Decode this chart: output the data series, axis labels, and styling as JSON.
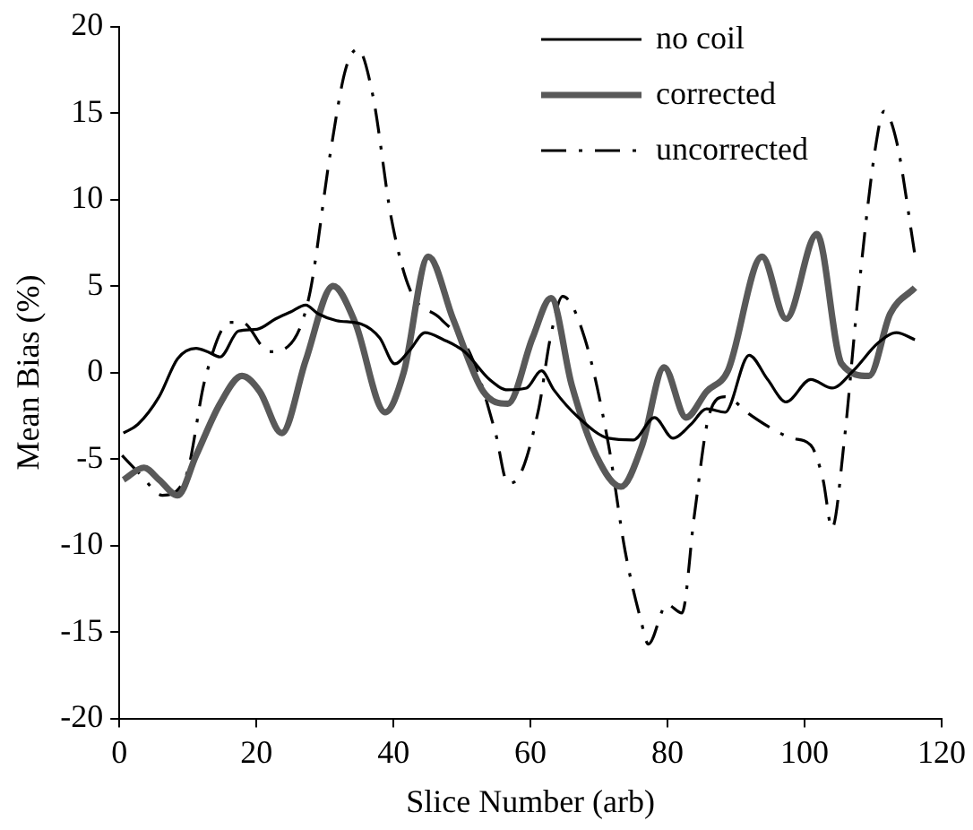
{
  "chart_data": {
    "type": "line",
    "xlabel": "Slice Number (arb)",
    "ylabel": "Mean Bias (%)",
    "xlim": [
      0,
      120
    ],
    "xticks": [
      0,
      20,
      40,
      60,
      80,
      100,
      120
    ],
    "ylim": [
      -20,
      20
    ],
    "yticks": [
      -20,
      -15,
      -10,
      -5,
      0,
      5,
      10,
      15,
      20
    ],
    "grid": false,
    "legend": "top right",
    "marker": "none",
    "series": [
      {
        "name": "no coil",
        "color": "#000000",
        "line_style": "solid",
        "x": [
          0.6,
          2.7,
          5.8,
          8.5,
          11.2,
          12.9,
          14.7,
          17.4,
          20.1,
          22.8,
          25,
          27.2,
          29,
          31.7,
          35.3,
          38,
          40.2,
          42.4,
          44.6,
          47.3,
          50.4,
          54,
          56.7,
          59.4,
          61.6,
          63.4,
          67,
          71.4,
          75,
          78.1,
          80.8,
          83.4,
          85.7,
          88.4,
          91.9,
          94.6,
          97.3,
          100.9,
          104,
          107.1,
          110.7,
          113.4,
          116.1
        ],
        "values": [
          -3.5,
          -3.0,
          -1.4,
          0.8,
          1.4,
          1.2,
          0.9,
          2.4,
          2.5,
          3.1,
          3.5,
          3.9,
          3.4,
          3.0,
          2.8,
          2.0,
          0.5,
          1.3,
          2.3,
          1.9,
          1.2,
          -0.4,
          -1.0,
          -0.9,
          0.1,
          -1.0,
          -2.6,
          -3.8,
          -3.9,
          -2.6,
          -3.8,
          -3.0,
          -2.1,
          -2.3,
          1.0,
          -0.4,
          -1.7,
          -0.4,
          -0.9,
          0.1,
          1.7,
          2.3,
          1.9
        ]
      },
      {
        "name": "corrected",
        "color": "#595959",
        "line_style": "solid",
        "x": [
          0.6,
          3.6,
          5.8,
          8.5,
          11.2,
          14.7,
          17.9,
          20.5,
          23.7,
          27.2,
          31.2,
          34.4,
          38.8,
          41.5,
          45.1,
          48.7,
          53.1,
          56.7,
          60.3,
          63,
          66,
          69.6,
          73.2,
          76.3,
          79.5,
          82.7,
          85.7,
          88.8,
          93.8,
          97.3,
          101.8,
          105.4,
          109.4,
          112.5,
          116.1
        ],
        "values": [
          -6.2,
          -5.5,
          -6.2,
          -7.1,
          -4.8,
          -1.8,
          -0.2,
          -1.1,
          -3.5,
          0.7,
          5.0,
          2.9,
          -2.3,
          0,
          6.7,
          3.1,
          -1.1,
          -1.8,
          2.0,
          4.3,
          -0.7,
          -4.8,
          -6.6,
          -4.2,
          0.3,
          -2.6,
          -1.1,
          0.1,
          6.7,
          3.1,
          8.0,
          0.5,
          -0.2,
          3.4,
          4.9
        ]
      },
      {
        "name": "uncorrected",
        "color": "#000000",
        "line_style": "dashdot",
        "x": [
          0.4,
          3.1,
          6.3,
          9.8,
          12.5,
          16.1,
          17.9,
          21.9,
          24.6,
          27.7,
          30.8,
          33,
          34.8,
          37,
          39.7,
          42.4,
          46.9,
          51.3,
          54.9,
          56.7,
          58,
          61.2,
          62.9,
          64.7,
          67.9,
          71.4,
          73.8,
          76.1,
          77.2,
          79.9,
          82.1,
          83.9,
          86.1,
          88.4,
          91.9,
          94.6,
          98.2,
          100.9,
          102.7,
          104,
          105.8,
          107.7,
          110.3,
          111.6,
          113.4,
          116.1
        ],
        "values": [
          -4.8,
          -5.9,
          -7.1,
          -5.9,
          -0.4,
          2.9,
          2.9,
          1.2,
          1.5,
          4.4,
          12.7,
          17.5,
          18.7,
          16.0,
          8.9,
          4.8,
          3.1,
          1.0,
          -3.5,
          -6.4,
          -6.2,
          -2.1,
          2.0,
          4.4,
          2.0,
          -4.2,
          -10.3,
          -14.3,
          -15.7,
          -13.4,
          -13.9,
          -8.3,
          -2.4,
          -1.4,
          -2.4,
          -3.1,
          -3.8,
          -4.2,
          -6.2,
          -9.0,
          -3.9,
          4.0,
          12.9,
          15.1,
          13.4,
          6.8
        ]
      }
    ]
  }
}
